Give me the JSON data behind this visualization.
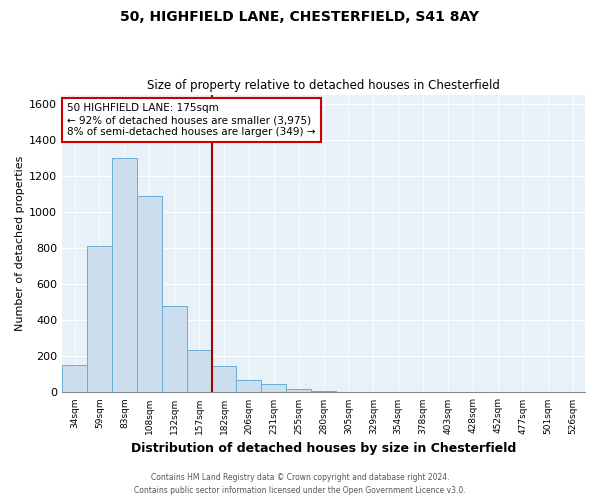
{
  "title_line1": "50, HIGHFIELD LANE, CHESTERFIELD, S41 8AY",
  "title_line2": "Size of property relative to detached houses in Chesterfield",
  "xlabel": "Distribution of detached houses by size in Chesterfield",
  "ylabel": "Number of detached properties",
  "categories": [
    "34sqm",
    "59sqm",
    "83sqm",
    "108sqm",
    "132sqm",
    "157sqm",
    "182sqm",
    "206sqm",
    "231sqm",
    "255sqm",
    "280sqm",
    "305sqm",
    "329sqm",
    "354sqm",
    "378sqm",
    "403sqm",
    "428sqm",
    "452sqm",
    "477sqm",
    "501sqm",
    "526sqm"
  ],
  "bar_heights": [
    150,
    810,
    1300,
    1090,
    480,
    235,
    145,
    70,
    45,
    20,
    10,
    5,
    5,
    3,
    3,
    2,
    2,
    1,
    1,
    1,
    0
  ],
  "bar_color": "#ccdeed",
  "bar_edge_color": "#6aadd5",
  "property_line_color": "#aa0000",
  "annotation_text": "50 HIGHFIELD LANE: 175sqm\n← 92% of detached houses are smaller (3,975)\n8% of semi-detached houses are larger (349) →",
  "annotation_box_edge_color": "#cc0000",
  "ylim": [
    0,
    1650
  ],
  "yticks": [
    0,
    200,
    400,
    600,
    800,
    1000,
    1200,
    1400,
    1600
  ],
  "footer_line1": "Contains HM Land Registry data © Crown copyright and database right 2024.",
  "footer_line2": "Contains public sector information licensed under the Open Government Licence v3.0.",
  "fig_bg_color": "#ffffff",
  "plot_bg_color": "#e8f0f8"
}
